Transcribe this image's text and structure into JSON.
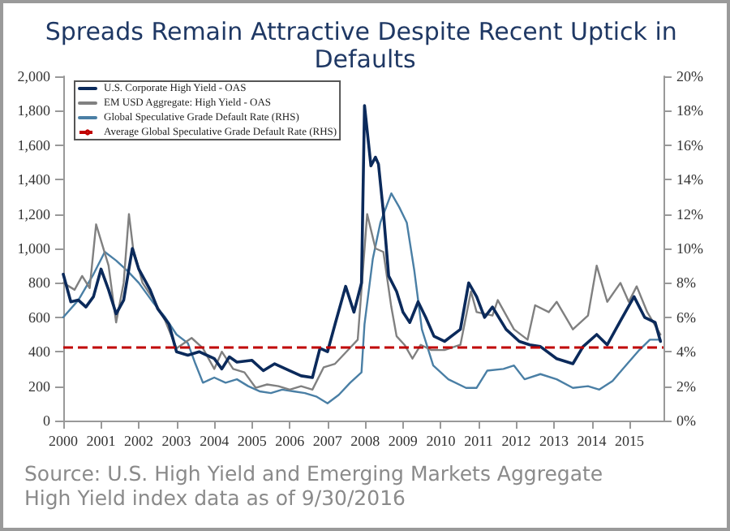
{
  "chart_data": {
    "type": "line",
    "title": "Spreads Remain Attractive Despite Recent Uptick in Defaults",
    "annotations": [
      "Source: U.S. High Yield and Emerging Markets Aggregate High Yield index data as of 9/30/2016"
    ],
    "xlim": [
      2000,
      2015.9
    ],
    "xticks": [
      2000,
      2001,
      2002,
      2003,
      2004,
      2005,
      2006,
      2007,
      2008,
      2009,
      2010,
      2011,
      2012,
      2013,
      2014,
      2015
    ],
    "ylim": [
      0,
      2000
    ],
    "yticks": [
      0,
      200,
      400,
      600,
      800,
      {
        "value": 1000,
        "label": "1,000"
      },
      {
        "value": 1200,
        "label": "1,200"
      },
      {
        "value": 1400,
        "label": "1,400"
      },
      {
        "value": 1600,
        "label": "1,600"
      },
      {
        "value": 1800,
        "label": "1,800"
      },
      {
        "value": 2000,
        "label": "2,000"
      }
    ],
    "y2lim": [
      0,
      20
    ],
    "y2ticks": [
      {
        "value": 0,
        "label": "0%"
      },
      {
        "value": 2,
        "label": "2%"
      },
      {
        "value": 4,
        "label": "4%"
      },
      {
        "value": 6,
        "label": "6%"
      },
      {
        "value": 8,
        "label": "8%"
      },
      {
        "value": 10,
        "label": "10%"
      },
      {
        "value": 12,
        "label": "12%"
      },
      {
        "value": 14,
        "label": "14%"
      },
      {
        "value": 16,
        "label": "16%"
      },
      {
        "value": 18,
        "label": "18%"
      },
      {
        "value": 20,
        "label": "20%"
      }
    ],
    "grid": false,
    "legend": "top left",
    "line_style": "solid",
    "series": [
      {
        "name": "U.S. Corporate High Yield - OAS",
        "color": "#0b2a5b",
        "x": [
          2000.0,
          2000.2,
          2000.4,
          2000.6,
          2000.8,
          2001.0,
          2001.2,
          2001.4,
          2001.6,
          2001.83,
          2002.0,
          2002.3,
          2002.5,
          2002.8,
          2003.0,
          2003.3,
          2003.6,
          2004.0,
          2004.2,
          2004.4,
          2004.6,
          2005.0,
          2005.3,
          2005.6,
          2006.0,
          2006.3,
          2006.6,
          2006.8,
          2007.0,
          2007.2,
          2007.48,
          2007.7,
          2007.9,
          2007.98,
          2008.15,
          2008.27,
          2008.35,
          2008.48,
          2008.62,
          2008.83,
          2009.0,
          2009.18,
          2009.4,
          2009.6,
          2009.82,
          2010.1,
          2010.52,
          2010.74,
          2010.95,
          2011.16,
          2011.37,
          2011.73,
          2012.08,
          2012.36,
          2012.64,
          2013.07,
          2013.5,
          2013.77,
          2014.13,
          2014.41,
          2014.76,
          2015.12,
          2015.4,
          2015.68,
          2015.82
        ],
        "values": [
          850,
          690,
          700,
          660,
          720,
          880,
          760,
          620,
          700,
          1000,
          880,
          760,
          650,
          560,
          400,
          380,
          400,
          360,
          300,
          370,
          340,
          350,
          290,
          330,
          290,
          260,
          250,
          420,
          400,
          560,
          780,
          630,
          800,
          1830,
          1480,
          1530,
          1490,
          1210,
          840,
          750,
          630,
          570,
          690,
          600,
          490,
          460,
          530,
          800,
          720,
          600,
          660,
          530,
          460,
          440,
          430,
          360,
          330,
          430,
          500,
          440,
          580,
          720,
          600,
          570,
          460
        ]
      },
      {
        "name": "EM USD Aggregate: High Yield - OAS",
        "color": "#808080",
        "x": [
          2000.0,
          2000.3,
          2000.5,
          2000.7,
          2000.87,
          2001.2,
          2001.4,
          2001.6,
          2001.74,
          2001.85,
          2002.1,
          2002.4,
          2002.7,
          2003.0,
          2003.4,
          2003.7,
          2004.0,
          2004.2,
          2004.5,
          2004.8,
          2005.1,
          2005.4,
          2005.7,
          2006.0,
          2006.3,
          2006.6,
          2006.9,
          2007.2,
          2007.5,
          2007.8,
          2008.05,
          2008.27,
          2008.48,
          2008.69,
          2008.83,
          2009.04,
          2009.25,
          2009.47,
          2009.75,
          2010.1,
          2010.52,
          2010.8,
          2010.95,
          2011.37,
          2011.51,
          2011.94,
          2012.3,
          2012.5,
          2012.86,
          2013.07,
          2013.5,
          2013.9,
          2014.13,
          2014.41,
          2014.76,
          2014.98,
          2015.19,
          2015.47,
          2015.82
        ],
        "values": [
          800,
          760,
          840,
          770,
          1140,
          900,
          570,
          800,
          1200,
          1000,
          800,
          700,
          580,
          420,
          480,
          420,
          300,
          400,
          300,
          280,
          190,
          210,
          200,
          180,
          200,
          180,
          310,
          330,
          400,
          470,
          1200,
          1000,
          980,
          660,
          490,
          440,
          360,
          440,
          410,
          410,
          440,
          750,
          630,
          610,
          700,
          530,
          470,
          670,
          630,
          690,
          530,
          610,
          900,
          690,
          800,
          690,
          780,
          630,
          500
        ]
      },
      {
        "name": "Global Speculative Grade Default Rate (RHS)",
        "color": "#4a7fa5",
        "axis": "y2",
        "x": [
          2000.0,
          2000.4,
          2000.8,
          2001.1,
          2001.4,
          2001.7,
          2002.0,
          2002.4,
          2002.7,
          2003.0,
          2003.3,
          2003.5,
          2003.7,
          2004.0,
          2004.3,
          2004.6,
          2004.9,
          2005.2,
          2005.5,
          2005.8,
          2006.1,
          2006.4,
          2006.7,
          2007.0,
          2007.3,
          2007.6,
          2007.9,
          2007.98,
          2008.2,
          2008.4,
          2008.69,
          2008.9,
          2009.1,
          2009.3,
          2009.5,
          2009.8,
          2010.2,
          2010.67,
          2010.95,
          2011.23,
          2011.66,
          2011.94,
          2012.22,
          2012.64,
          2013.07,
          2013.5,
          2013.9,
          2014.2,
          2014.55,
          2014.9,
          2015.26,
          2015.54,
          2015.82
        ],
        "values": [
          6.0,
          7.0,
          8.5,
          9.8,
          9.3,
          8.7,
          8.0,
          6.8,
          6.0,
          5.0,
          4.5,
          3.3,
          2.2,
          2.5,
          2.2,
          2.4,
          2.0,
          1.7,
          1.6,
          1.8,
          1.7,
          1.6,
          1.4,
          1.0,
          1.5,
          2.2,
          2.8,
          5.6,
          9.4,
          11.5,
          13.2,
          12.4,
          11.5,
          8.7,
          5.3,
          3.2,
          2.4,
          1.9,
          1.9,
          2.9,
          3.0,
          3.2,
          2.4,
          2.7,
          2.4,
          1.9,
          2.0,
          1.8,
          2.3,
          3.2,
          4.1,
          4.7,
          4.7
        ]
      }
    ],
    "ref_lines": [
      {
        "axis": "y2",
        "value": 4.3,
        "label": "Average Global Speculative Grade Default Rate (RHS)",
        "color": "#c00000",
        "line_style": "dashed"
      }
    ]
  }
}
